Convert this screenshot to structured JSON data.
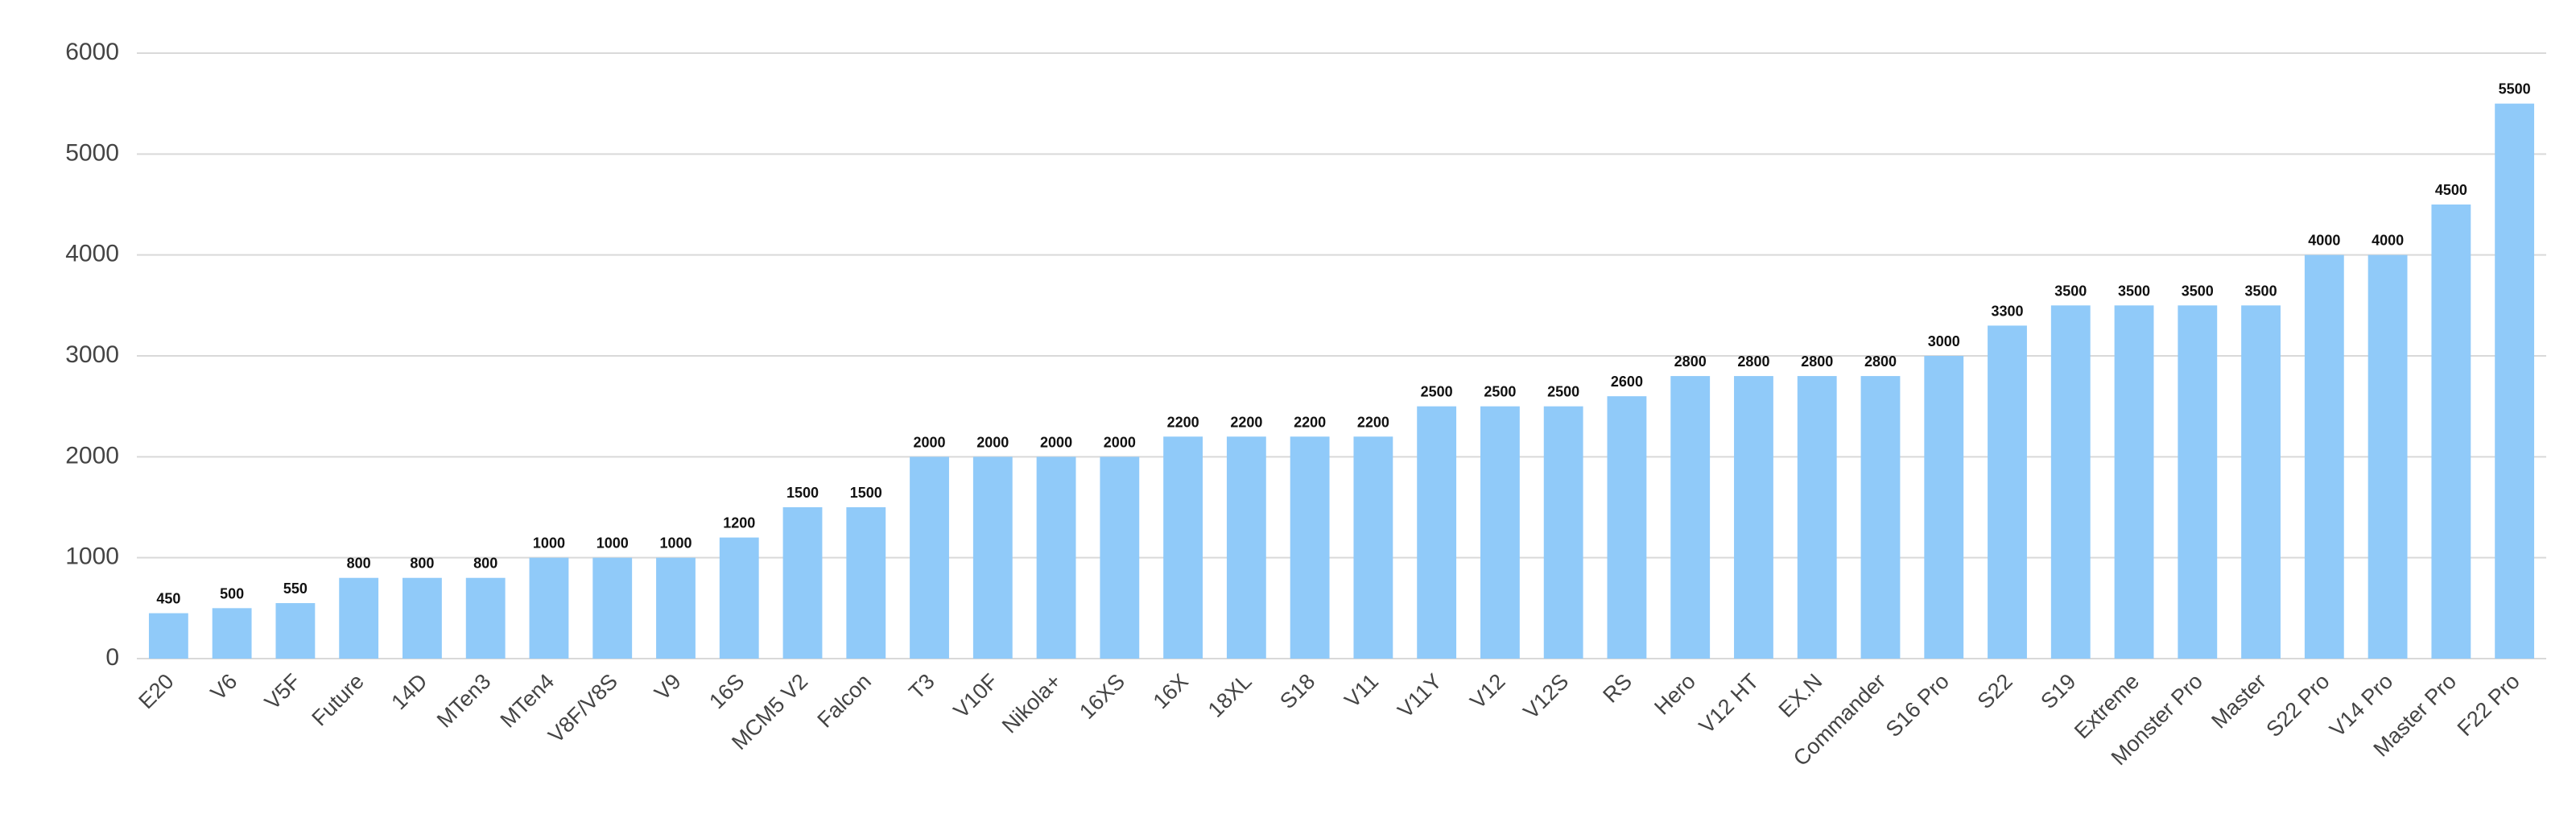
{
  "chart_data": {
    "type": "bar",
    "categories": [
      "E20",
      "V6",
      "V5F",
      "Future",
      "14D",
      "MTen3",
      "MTen4",
      "V8F/V8S",
      "V9",
      "16S",
      "MCM5 V2",
      "Falcon",
      "T3",
      "V10F",
      "Nikola+",
      "16XS",
      "16X",
      "18XL",
      "S18",
      "V11",
      "V11Y",
      "V12",
      "V12S",
      "RS",
      "Hero",
      "V12 HT",
      "EX.N",
      "Commander",
      "S16 Pro",
      "S22",
      "S19",
      "Extreme",
      "Monster Pro",
      "Master",
      "S22 Pro",
      "V14 Pro",
      "Master Pro",
      "F22 Pro"
    ],
    "values": [
      450,
      500,
      550,
      800,
      800,
      800,
      1000,
      1000,
      1000,
      1200,
      1500,
      1500,
      2000,
      2000,
      2000,
      2000,
      2200,
      2200,
      2200,
      2200,
      2500,
      2500,
      2500,
      2600,
      2800,
      2800,
      2800,
      2800,
      3000,
      3300,
      3500,
      3500,
      3500,
      3500,
      4000,
      4000,
      4500,
      5500
    ],
    "color": "#90caf9",
    "ylim": [
      0,
      6000
    ],
    "yticks": [
      0,
      1000,
      2000,
      3000,
      4000,
      5000,
      6000
    ],
    "grid": true
  }
}
